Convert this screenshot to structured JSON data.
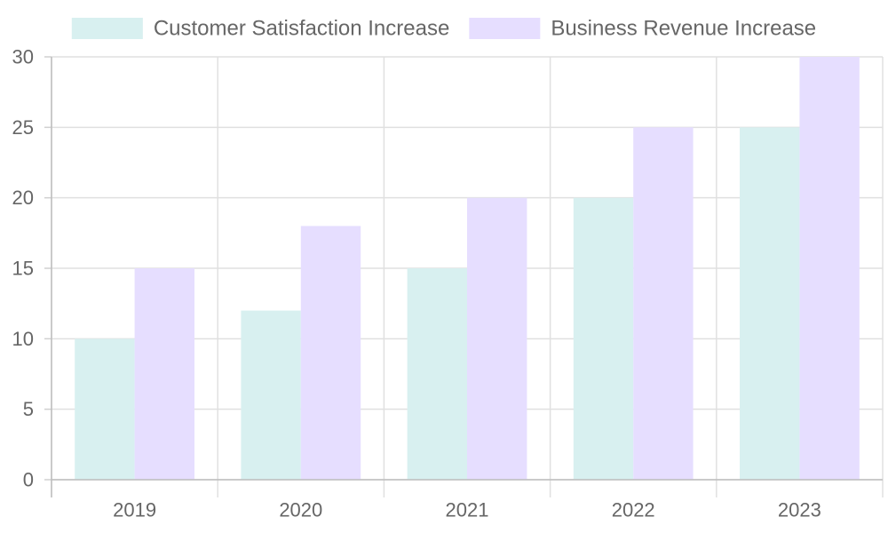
{
  "chart_data": {
    "type": "bar",
    "title": "",
    "xlabel": "",
    "ylabel": "",
    "categories": [
      "2019",
      "2020",
      "2021",
      "2022",
      "2023"
    ],
    "series": [
      {
        "name": "Customer Satisfaction Increase",
        "values": [
          10,
          12,
          15,
          20,
          25
        ],
        "color": "#d8f0f0"
      },
      {
        "name": "Business Revenue Increase",
        "values": [
          15,
          18,
          20,
          25,
          30
        ],
        "color": "#e6deff"
      }
    ],
    "ylim": [
      0,
      30
    ],
    "yticks": [
      0,
      5,
      10,
      15,
      20,
      25,
      30
    ],
    "grid": true,
    "legend_position": "top-center"
  }
}
